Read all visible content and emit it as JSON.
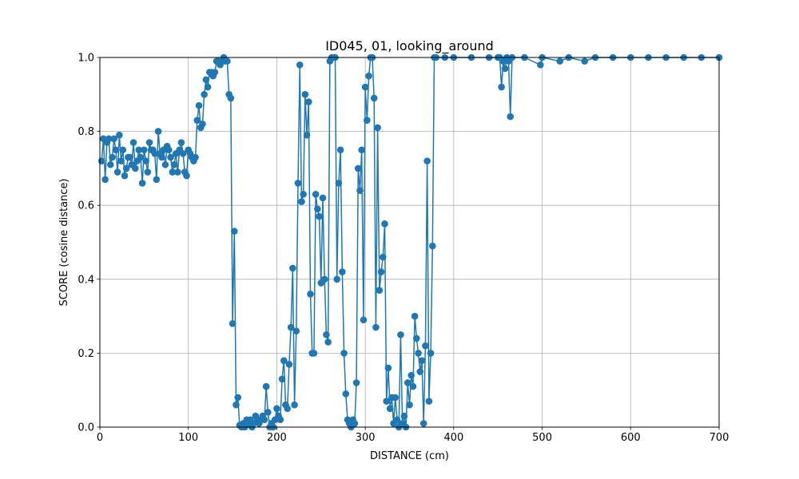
{
  "chart_data": {
    "type": "line",
    "title": "ID045, 01, looking_around",
    "xlabel": "DISTANCE (cm)",
    "ylabel": "SCORE (cosine distance)",
    "xlim": [
      0,
      700
    ],
    "ylim": [
      0,
      1
    ],
    "grid": true,
    "marker": "circle",
    "x_ticks": [
      "0",
      "100",
      "200",
      "300",
      "400",
      "500",
      "600",
      "700"
    ],
    "y_ticks": [
      "0.0",
      "0.2",
      "0.4",
      "0.6",
      "0.8",
      "1.0"
    ],
    "series": [
      {
        "color": "#1f77b4",
        "points": [
          [
            2,
            0.72
          ],
          [
            4,
            0.78
          ],
          [
            6,
            0.67
          ],
          [
            8,
            0.77
          ],
          [
            10,
            0.78
          ],
          [
            12,
            0.71
          ],
          [
            14,
            0.73
          ],
          [
            16,
            0.78
          ],
          [
            18,
            0.75
          ],
          [
            20,
            0.69
          ],
          [
            22,
            0.79
          ],
          [
            24,
            0.72
          ],
          [
            26,
            0.75
          ],
          [
            28,
            0.68
          ],
          [
            30,
            0.7
          ],
          [
            32,
            0.73
          ],
          [
            34,
            0.73
          ],
          [
            36,
            0.71
          ],
          [
            38,
            0.77
          ],
          [
            40,
            0.7
          ],
          [
            42,
            0.72
          ],
          [
            44,
            0.75
          ],
          [
            46,
            0.73
          ],
          [
            48,
            0.66
          ],
          [
            50,
            0.75
          ],
          [
            52,
            0.72
          ],
          [
            54,
            0.69
          ],
          [
            56,
            0.77
          ],
          [
            58,
            0.75
          ],
          [
            60,
            0.75
          ],
          [
            62,
            0.74
          ],
          [
            64,
            0.67
          ],
          [
            66,
            0.8
          ],
          [
            68,
            0.74
          ],
          [
            70,
            0.73
          ],
          [
            72,
            0.75
          ],
          [
            74,
            0.71
          ],
          [
            76,
            0.76
          ],
          [
            78,
            0.75
          ],
          [
            80,
            0.73
          ],
          [
            82,
            0.69
          ],
          [
            84,
            0.71
          ],
          [
            86,
            0.74
          ],
          [
            88,
            0.69
          ],
          [
            90,
            0.75
          ],
          [
            92,
            0.77
          ],
          [
            94,
            0.74
          ],
          [
            96,
            0.69
          ],
          [
            98,
            0.68
          ],
          [
            100,
            0.75
          ],
          [
            102,
            0.74
          ],
          [
            104,
            0.73
          ],
          [
            106,
            0.72
          ],
          [
            108,
            0.73
          ],
          [
            110,
            0.83
          ],
          [
            112,
            0.87
          ],
          [
            114,
            0.81
          ],
          [
            116,
            0.82
          ],
          [
            118,
            0.9
          ],
          [
            120,
            0.94
          ],
          [
            122,
            0.92
          ],
          [
            124,
            0.96
          ],
          [
            126,
            0.96
          ],
          [
            128,
            0.95
          ],
          [
            130,
            0.96
          ],
          [
            132,
            0.99
          ],
          [
            134,
            0.99
          ],
          [
            136,
            0.98
          ],
          [
            138,
            0.99
          ],
          [
            140,
            1.0
          ],
          [
            142,
            0.99
          ],
          [
            144,
            0.99
          ],
          [
            146,
            0.9
          ],
          [
            148,
            0.89
          ],
          [
            150,
            0.28
          ],
          [
            152,
            0.53
          ],
          [
            154,
            0.06
          ],
          [
            156,
            0.08
          ],
          [
            158,
            0.005
          ],
          [
            160,
            0.0
          ],
          [
            162,
            0.01
          ],
          [
            164,
            0.0
          ],
          [
            166,
            0.02
          ],
          [
            168,
            0.01
          ],
          [
            170,
            0.02
          ],
          [
            172,
            0.0
          ],
          [
            174,
            0.01
          ],
          [
            176,
            0.03
          ],
          [
            178,
            0.02
          ],
          [
            180,
            0.01
          ],
          [
            182,
            0.02
          ],
          [
            184,
            0.03
          ],
          [
            186,
            0.02
          ],
          [
            188,
            0.11
          ],
          [
            190,
            0.04
          ],
          [
            192,
            0.0
          ],
          [
            194,
            0.01
          ],
          [
            196,
            0.0
          ],
          [
            198,
            0.02
          ],
          [
            200,
            0.05
          ],
          [
            202,
            0.03
          ],
          [
            204,
            0.02
          ],
          [
            206,
            0.13
          ],
          [
            208,
            0.18
          ],
          [
            210,
            0.06
          ],
          [
            212,
            0.05
          ],
          [
            214,
            0.17
          ],
          [
            216,
            0.27
          ],
          [
            218,
            0.43
          ],
          [
            220,
            0.06
          ],
          [
            222,
            0.26
          ],
          [
            224,
            0.66
          ],
          [
            226,
            0.98
          ],
          [
            228,
            0.61
          ],
          [
            230,
            0.63
          ],
          [
            232,
            0.9
          ],
          [
            234,
            0.79
          ],
          [
            236,
            0.88
          ],
          [
            238,
            0.36
          ],
          [
            240,
            0.2
          ],
          [
            242,
            0.2
          ],
          [
            244,
            0.63
          ],
          [
            246,
            0.59
          ],
          [
            248,
            0.57
          ],
          [
            250,
            0.39
          ],
          [
            252,
            0.62
          ],
          [
            254,
            0.4
          ],
          [
            256,
            0.25
          ],
          [
            258,
            0.23
          ],
          [
            260,
            0.99
          ],
          [
            262,
            1.0
          ],
          [
            264,
            1.0
          ],
          [
            266,
            1.0
          ],
          [
            268,
            0.4
          ],
          [
            270,
            0.66
          ],
          [
            272,
            0.75
          ],
          [
            274,
            0.42
          ],
          [
            276,
            0.2
          ],
          [
            278,
            0.09
          ],
          [
            280,
            0.02
          ],
          [
            282,
            0.01
          ],
          [
            284,
            0.0
          ],
          [
            286,
            0.02
          ],
          [
            288,
            0.01
          ],
          [
            290,
            0.12
          ],
          [
            292,
            0.7
          ],
          [
            294,
            0.64
          ],
          [
            296,
            0.75
          ],
          [
            298,
            0.29
          ],
          [
            300,
            0.92
          ],
          [
            302,
            0.83
          ],
          [
            304,
            0.95
          ],
          [
            306,
            1.0
          ],
          [
            308,
            1.0
          ],
          [
            310,
            0.89
          ],
          [
            312,
            0.27
          ],
          [
            314,
            0.81
          ],
          [
            316,
            0.37
          ],
          [
            318,
            0.42
          ],
          [
            320,
            0.46
          ],
          [
            322,
            0.55
          ],
          [
            324,
            0.07
          ],
          [
            326,
            0.16
          ],
          [
            328,
            0.05
          ],
          [
            330,
            0.08
          ],
          [
            332,
            0.01
          ],
          [
            334,
            0.08
          ],
          [
            336,
            0.02
          ],
          [
            338,
            0.0
          ],
          [
            340,
            0.25
          ],
          [
            342,
            0.01
          ],
          [
            344,
            0.03
          ],
          [
            346,
            0.0
          ],
          [
            348,
            0.12
          ],
          [
            350,
            0.06
          ],
          [
            352,
            0.14
          ],
          [
            354,
            0.11
          ],
          [
            356,
            0.3
          ],
          [
            358,
            0.24
          ],
          [
            360,
            0.2
          ],
          [
            362,
            0.15
          ],
          [
            364,
            0.18
          ],
          [
            366,
            0.01
          ],
          [
            368,
            0.22
          ],
          [
            370,
            0.72
          ],
          [
            372,
            0.07
          ],
          [
            374,
            0.2
          ],
          [
            376,
            0.49
          ],
          [
            378,
            1.0
          ],
          [
            380,
            1.0
          ],
          [
            390,
            1.0
          ],
          [
            400,
            1.0
          ],
          [
            420,
            1.0
          ],
          [
            440,
            1.0
          ],
          [
            450,
            1.0
          ],
          [
            452,
            1.0
          ],
          [
            454,
            0.92
          ],
          [
            456,
            0.99
          ],
          [
            458,
            0.97
          ],
          [
            460,
            1.0
          ],
          [
            462,
            0.99
          ],
          [
            464,
            0.84
          ],
          [
            466,
            1.0
          ],
          [
            480,
            1.0
          ],
          [
            498,
            0.98
          ],
          [
            500,
            1.0
          ],
          [
            520,
            0.99
          ],
          [
            530,
            1.0
          ],
          [
            548,
            0.99
          ],
          [
            560,
            1.0
          ],
          [
            580,
            1.0
          ],
          [
            600,
            1.0
          ],
          [
            620,
            1.0
          ],
          [
            640,
            1.0
          ],
          [
            660,
            1.0
          ],
          [
            680,
            1.0
          ],
          [
            700,
            1.0
          ]
        ]
      }
    ]
  }
}
